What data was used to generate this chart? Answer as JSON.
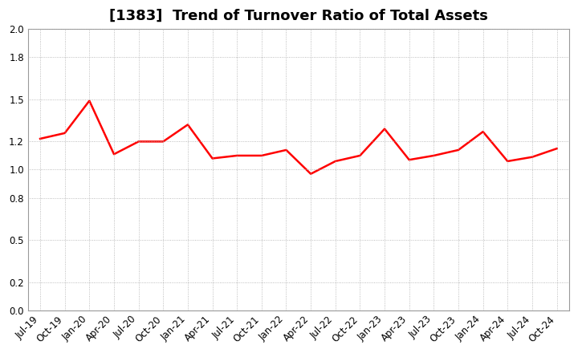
{
  "title": "[1383]  Trend of Turnover Ratio of Total Assets",
  "x_labels": [
    "Jul-19",
    "Oct-19",
    "Jan-20",
    "Apr-20",
    "Jul-20",
    "Oct-20",
    "Jan-21",
    "Apr-21",
    "Jul-21",
    "Oct-21",
    "Jan-22",
    "Apr-22",
    "Jul-22",
    "Oct-22",
    "Jan-23",
    "Apr-23",
    "Jul-23",
    "Oct-23",
    "Jan-24",
    "Apr-24",
    "Jul-24",
    "Oct-24"
  ],
  "y_values": [
    1.22,
    1.26,
    1.49,
    1.11,
    1.2,
    1.2,
    1.32,
    1.08,
    1.1,
    1.1,
    1.14,
    0.97,
    1.06,
    1.1,
    1.29,
    1.07,
    1.1,
    1.14,
    1.27,
    1.06,
    1.09,
    1.15
  ],
  "line_color": "#ff0000",
  "line_width": 1.8,
  "ylim": [
    0.0,
    2.0
  ],
  "yticks": [
    0.0,
    0.2,
    0.5,
    0.8,
    1.0,
    1.2,
    1.5,
    1.8,
    2.0
  ],
  "title_fontsize": 13,
  "tick_fontsize": 8.5,
  "background_color": "#ffffff",
  "grid_color": "#aaaaaa",
  "grid_style": "dotted"
}
